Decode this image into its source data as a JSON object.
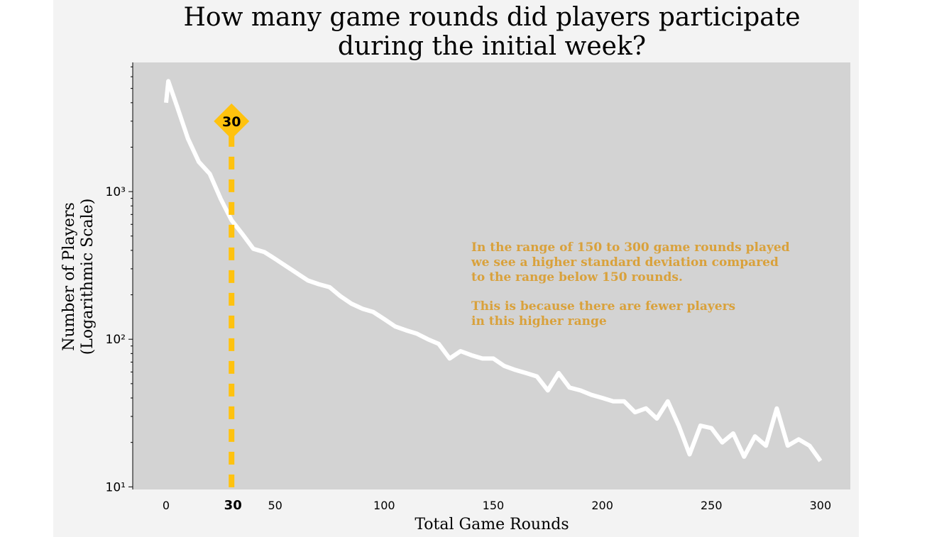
{
  "chart_data": {
    "type": "line",
    "title": [
      "How many game rounds did players participate",
      "during the initial week?"
    ],
    "xlabel": "Total Game Rounds",
    "ylabel": [
      "Number of Players",
      "(Logarithmic Scale)"
    ],
    "x": [
      0,
      1,
      5,
      10,
      15,
      20,
      25,
      30,
      35,
      40,
      45,
      50,
      55,
      60,
      65,
      70,
      75,
      80,
      85,
      90,
      95,
      100,
      105,
      110,
      115,
      120,
      125,
      130,
      135,
      140,
      145,
      150,
      155,
      160,
      165,
      170,
      175,
      180,
      185,
      190,
      195,
      200,
      205,
      210,
      215,
      220,
      225,
      230,
      235,
      240,
      245,
      250,
      255,
      260,
      265,
      270,
      275,
      280,
      285,
      290,
      295,
      300
    ],
    "series": [
      {
        "color": "#ffffff",
        "values": [
          4000,
          5600,
          3780,
          2290,
          1590,
          1320,
          895,
          640,
          515,
          410,
          390,
          350,
          313,
          280,
          250,
          236,
          225,
          195,
          174,
          161,
          153,
          137,
          122,
          115,
          109,
          100,
          93,
          74,
          83,
          78,
          74,
          74,
          66,
          62,
          59,
          56,
          45,
          59,
          47,
          45,
          42,
          40,
          38,
          38,
          32,
          34,
          29,
          38,
          26,
          16.6,
          26,
          25,
          20,
          23,
          16,
          22,
          19,
          34,
          19,
          21,
          19,
          15
        ]
      }
    ],
    "xlim": [
      -15.3,
      313.7
    ],
    "xticks": [
      0,
      50,
      100,
      150,
      200,
      250,
      300
    ],
    "ylim": [
      9.6,
      7500
    ],
    "log_y": true,
    "yticks": [
      {
        "value": 10,
        "label": "10¹"
      },
      {
        "value": 100,
        "label": "10²"
      },
      {
        "value": 1000,
        "label": "10³"
      }
    ],
    "yminorticks": [
      20,
      30,
      40,
      50,
      60,
      70,
      80,
      90,
      200,
      300,
      400,
      500,
      600,
      700,
      800,
      900,
      2000,
      3000,
      4000,
      5000,
      6000,
      7000
    ],
    "vline": {
      "x": 30,
      "label_y": 3000,
      "color": "#ffc20e"
    },
    "annotation": {
      "color": "#d9a13b",
      "lines": [
        "In the range of 150 to 300 game rounds played",
        "we see a higher standard deviation compared",
        "to the range below 150 rounds.",
        "This is because there are fewer players",
        "in this higher range"
      ]
    }
  }
}
